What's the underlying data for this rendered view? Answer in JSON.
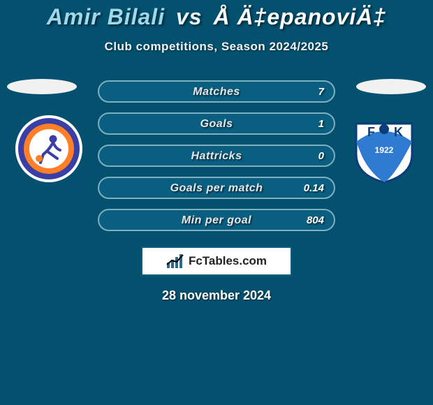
{
  "colors": {
    "background": "#03506f",
    "title_p1": "#9fd8e9",
    "title_vs": "#e8f6fb",
    "title_p2": "#ffffff",
    "subtitle": "#f2f2f2",
    "flag": "#f1f1f1",
    "row_fill": "#0a5e80",
    "row_border": "#7fb0c0",
    "row_border_width": "2px",
    "row_label": "#e6e6e6",
    "row_value": "#ffffff",
    "brand_bg": "#ffffff",
    "brand_border": "#0a5e80",
    "brand_text": "#222222",
    "brand_bars": "#2d6a8a",
    "brand_line": "#000000",
    "date": "#ffffff",
    "badge_left_outer": "#ffffff",
    "badge_left_ring1": "#3a3fa6",
    "badge_left_ring2": "#ff7f27",
    "badge_left_center": "#ffffff",
    "badge_right_bg": "#ffffff",
    "badge_right_border": "#0b3d7a",
    "badge_right_swoosh": "#2f7bd1"
  },
  "title": {
    "player1": "Amir Bilali",
    "vs": "vs",
    "player2": "Å Ä‡epanoviÄ‡"
  },
  "subtitle": "Club competitions, Season 2024/2025",
  "stats": [
    {
      "label": "Matches",
      "value": "7"
    },
    {
      "label": "Goals",
      "value": "1"
    },
    {
      "label": "Hattricks",
      "value": "0"
    },
    {
      "label": "Goals per match",
      "value": "0.14"
    },
    {
      "label": "Min per goal",
      "value": "804"
    }
  ],
  "brand": "FcTables.com",
  "date": "28 november 2024",
  "badge_left": {
    "letters": ""
  },
  "badge_right": {
    "F": "F",
    "K": "K",
    "year": "1922"
  }
}
